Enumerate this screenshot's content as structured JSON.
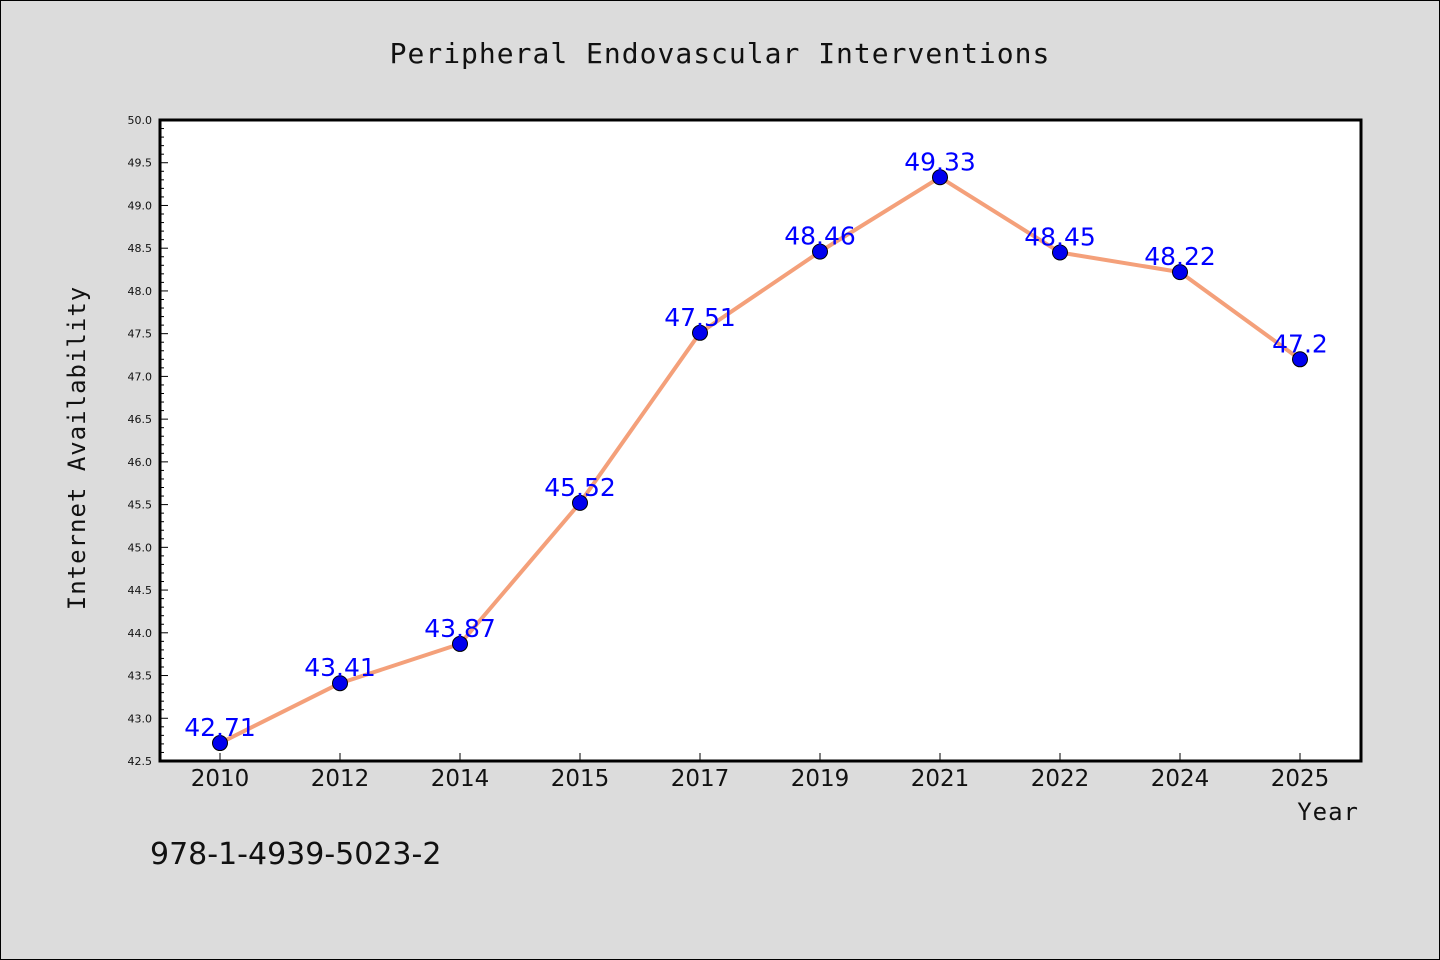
{
  "chart_data": {
    "type": "line",
    "title": "Peripheral Endovascular Interventions",
    "xlabel": "Year",
    "ylabel": "Internet Availability",
    "categories": [
      "2010",
      "2012",
      "2014",
      "2015",
      "2017",
      "2019",
      "2021",
      "2022",
      "2024",
      "2025"
    ],
    "series": [
      {
        "values": [
          42.71,
          43.41,
          43.87,
          45.52,
          47.51,
          48.46,
          49.33,
          48.45,
          48.22,
          47.2
        ],
        "labels": [
          "42.71",
          "43.41",
          "43.87",
          "45.52",
          "47.51",
          "48.46",
          "49.33",
          "48.45",
          "48.22",
          "47.2"
        ],
        "line_color": "#f4a07a",
        "marker_color": "#0000ee",
        "label_color": "#0000ff"
      }
    ],
    "ylim": [
      42.5,
      50.0
    ],
    "yticks": [
      "42.5",
      "43.0",
      "43.5",
      "44.0",
      "44.5",
      "45.0",
      "45.5",
      "46.0",
      "46.5",
      "47.0",
      "47.5",
      "48.0",
      "48.5",
      "49.0",
      "49.5",
      "50.0"
    ],
    "grid": false,
    "legend": "none",
    "background": "#dcdcdc",
    "plot_background": "#ffffff"
  },
  "footer_code": "978-1-4939-5023-2"
}
